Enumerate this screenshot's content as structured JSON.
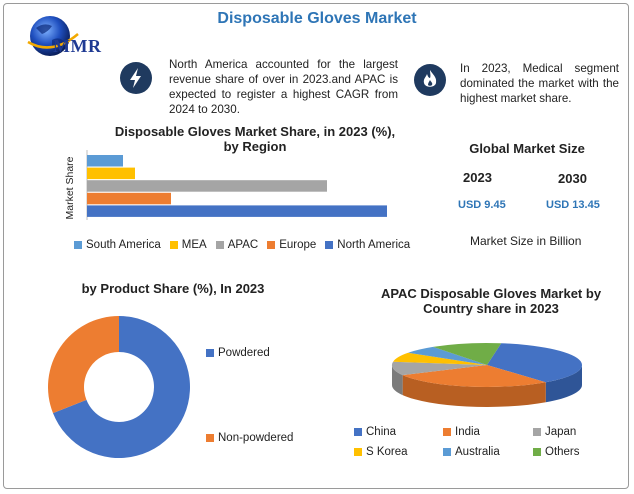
{
  "header": {
    "title": "Disposable Gloves Market",
    "logo_text": "MMR"
  },
  "notes": {
    "left": "North America accounted for the largest revenue share of over in 2023.and APAC is expected to register a highest CAGR from 2024 to 2030.",
    "right": "In 2023, Medical segment dominated the market with the highest market share."
  },
  "icons": {
    "left": "lightning-icon",
    "right": "flame-icon",
    "logo": "globe-icon"
  },
  "colors": {
    "south_america": "#5b9bd5",
    "mea": "#ffc000",
    "apac": "#a5a5a5",
    "europe": "#ed7d31",
    "north_america": "#4472c4",
    "badge": "#1f3a5f",
    "accent": "#2e75b6",
    "others": "#70ad47"
  },
  "market_size": {
    "title": "Global Market Size",
    "years": [
      "2023",
      "2030"
    ],
    "values": [
      "USD 9.45",
      "USD 13.45"
    ],
    "note": "Market Size in Billion"
  },
  "chart_data": [
    {
      "type": "bar",
      "orientation": "horizontal",
      "title": "Disposable Gloves Market Share, in 2023 (%), by Region",
      "ylabel": "Market Share",
      "categories": [
        "South America",
        "MEA",
        "APAC",
        "Europe",
        "North America"
      ],
      "values": [
        4.5,
        6.0,
        30.0,
        10.5,
        37.5
      ],
      "legend": [
        "South America",
        "MEA",
        "APAC",
        "Europe",
        "North America"
      ],
      "legend_position": "bottom"
    },
    {
      "type": "pie",
      "donut": true,
      "title": "by Product Share (%), In 2023",
      "categories": [
        "Powdered",
        "Non-powdered"
      ],
      "values": [
        69,
        31
      ],
      "legend_position": "right"
    },
    {
      "type": "pie",
      "three_d": true,
      "title": "APAC Disposable Gloves Market by Country share in 2023",
      "categories": [
        "China",
        "India",
        "Japan",
        "S Korea",
        "Australia",
        "Others"
      ],
      "values": [
        37,
        28,
        10,
        7,
        6,
        12
      ],
      "legend_position": "bottom"
    }
  ]
}
